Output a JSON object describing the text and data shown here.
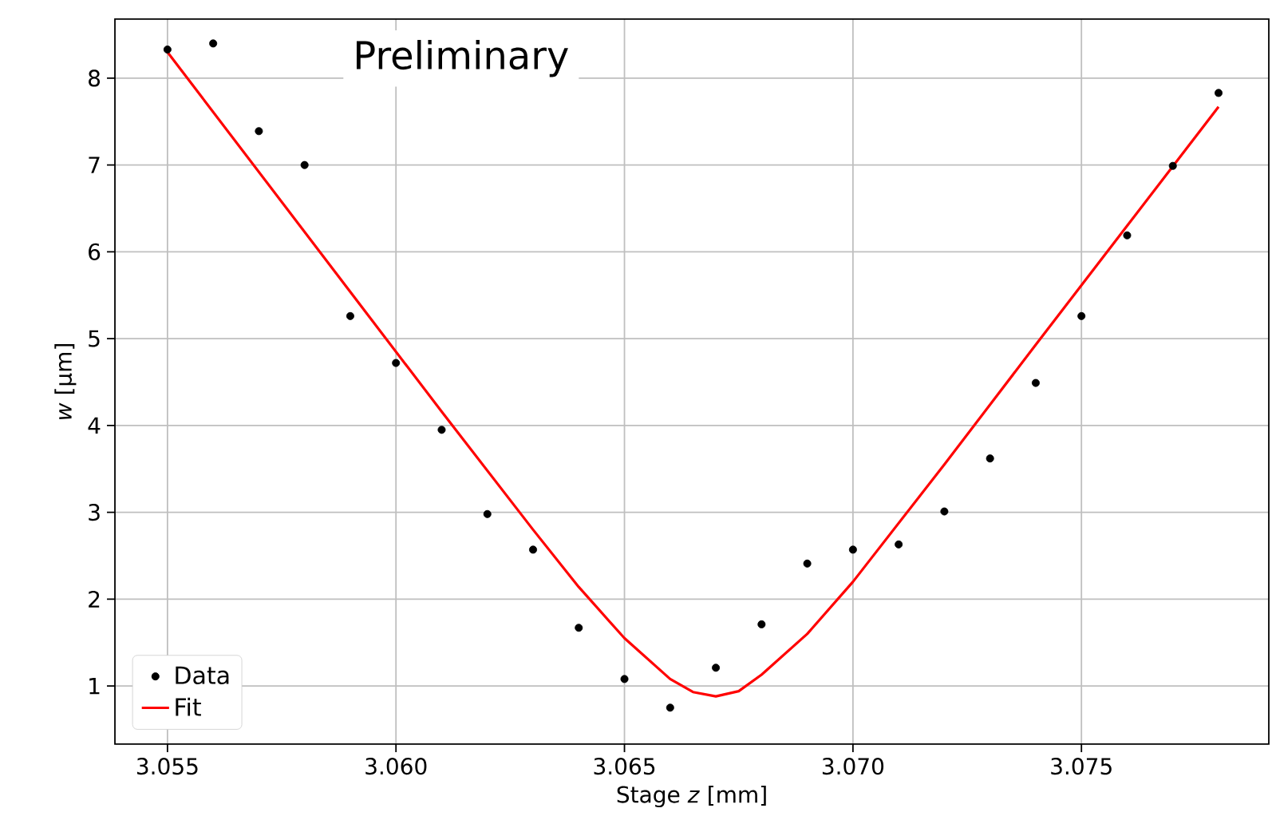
{
  "chart_data": {
    "type": "scatter",
    "xlabel": "Stage *z* [mm]",
    "ylabel": "*w* [µm]",
    "annotations": [
      "Preliminary"
    ],
    "xlim": [
      3.05385,
      3.0791
    ],
    "ylim": [
      0.33,
      8.68
    ],
    "xticks": [
      {
        "value": 3.055,
        "label": "3.055"
      },
      {
        "value": 3.06,
        "label": "3.060"
      },
      {
        "value": 3.065,
        "label": "3.065"
      },
      {
        "value": 3.07,
        "label": "3.070"
      },
      {
        "value": 3.075,
        "label": "3.075"
      }
    ],
    "yticks": [
      1,
      2,
      3,
      4,
      5,
      6,
      7,
      8
    ],
    "grid": true,
    "legend": "bottom left",
    "series": [
      {
        "name": "Data",
        "marker": "circle",
        "color": "#000000",
        "x": [
          3.055,
          3.056,
          3.057,
          3.058,
          3.059,
          3.06,
          3.061,
          3.062,
          3.063,
          3.064,
          3.065,
          3.066,
          3.067,
          3.068,
          3.069,
          3.07,
          3.071,
          3.072,
          3.073,
          3.074,
          3.075,
          3.076,
          3.077,
          3.078
        ],
        "values": [
          8.33,
          8.4,
          7.39,
          7.0,
          5.26,
          4.72,
          3.95,
          2.98,
          2.57,
          1.67,
          1.08,
          0.75,
          1.21,
          1.71,
          2.41,
          2.57,
          2.63,
          3.01,
          3.62,
          4.49,
          5.26,
          6.19,
          6.99,
          7.83
        ]
      },
      {
        "name": "Fit",
        "type": "line",
        "color": "#ff0000",
        "x": [
          3.055,
          3.057,
          3.059,
          3.061,
          3.063,
          3.064,
          3.065,
          3.066,
          3.0665,
          3.067,
          3.0675,
          3.068,
          3.069,
          3.07,
          3.072,
          3.074,
          3.076,
          3.078
        ],
        "values": [
          8.3,
          6.92,
          5.54,
          4.16,
          2.8,
          2.14,
          1.55,
          1.08,
          0.93,
          0.88,
          0.94,
          1.13,
          1.6,
          2.2,
          3.55,
          4.93,
          6.3,
          7.67
        ]
      }
    ]
  }
}
